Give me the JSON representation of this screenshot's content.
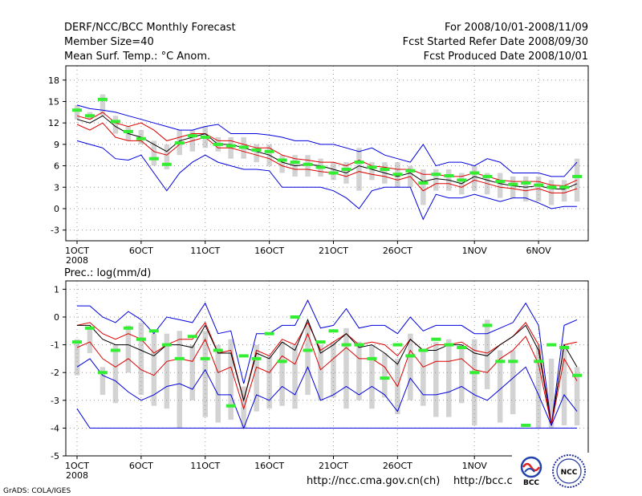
{
  "header": {
    "left_line1": "DERF/NCC/BCC Monthly Forecast",
    "left_line2": "Member Size=40",
    "left_line3": "Mean Surf. Temp.: °C Anom.",
    "right_line1": "For 2008/10/01-2008/11/09",
    "right_line2": "Fcst Started Refer Date 2008/09/30",
    "right_line3": "Fcst Produced Date 2008/10/01"
  },
  "footer": {
    "grads_credit": "GrADS: COLA/IGES",
    "url_cn": "http://ncc.cma.gov.cn(ch)",
    "url_bcc": "http://bcc.c",
    "logo_bcc_text": "BCC",
    "logo_ncc_text": "NCC"
  },
  "colors": {
    "envelope": "#0000dd",
    "spread": "#dd0000",
    "ensemble_mean": "#000000",
    "box": "#d3d3d3",
    "observed": "#33ee33"
  },
  "chart_data": [
    {
      "type": "line",
      "title": "Mean Surf. Temp.: °C Anom.",
      "xlabel": "",
      "ylabel": "°C Anom.",
      "x_tick_labels": [
        "1OCT",
        "6OCT",
        "11OCT",
        "16OCT",
        "21OCT",
        "26OCT",
        "1NOV",
        "6NOV"
      ],
      "x_tick_days": [
        1,
        6,
        11,
        16,
        21,
        26,
        32,
        37
      ],
      "x_sublabel": "2008",
      "xlim": [
        1,
        40
      ],
      "ylim": [
        -4.5,
        20
      ],
      "y_ticks": [
        -3,
        0,
        3,
        6,
        9,
        12,
        15,
        18
      ],
      "grid": true,
      "series": [
        {
          "name": "max",
          "role": "envelope",
          "values": [
            14.5,
            14.0,
            13.8,
            13.5,
            13.0,
            12.5,
            12.0,
            11.5,
            11.0,
            11.0,
            11.5,
            11.8,
            10.5,
            10.5,
            10.5,
            10.3,
            10.0,
            9.5,
            9.5,
            9.0,
            9.0,
            8.5,
            8.0,
            8.5,
            7.5,
            7.0,
            6.5,
            9.0,
            6.0,
            6.5,
            6.5,
            6.0,
            7.0,
            6.5,
            5.0,
            5.0,
            5.0,
            4.5,
            4.5,
            6.5
          ]
        },
        {
          "name": "p90",
          "role": "spread",
          "values": [
            13.0,
            12.5,
            13.5,
            12.0,
            11.5,
            12.0,
            11.0,
            9.5,
            10.0,
            10.5,
            10.5,
            9.5,
            9.5,
            9.0,
            8.5,
            8.5,
            7.5,
            7.0,
            6.8,
            6.5,
            6.5,
            6.0,
            6.8,
            6.0,
            5.8,
            5.5,
            5.5,
            4.8,
            4.8,
            4.5,
            4.5,
            5.0,
            4.5,
            4.0,
            3.8,
            3.8,
            3.8,
            3.3,
            3.2,
            4.0
          ]
        },
        {
          "name": "mean",
          "role": "ensemble_mean",
          "values": [
            12.5,
            12.0,
            13.0,
            11.5,
            10.5,
            10.0,
            9.0,
            8.0,
            9.5,
            10.0,
            10.5,
            9.0,
            9.0,
            8.5,
            8.0,
            7.5,
            6.5,
            6.0,
            6.2,
            6.0,
            5.5,
            5.0,
            6.0,
            5.5,
            5.0,
            4.5,
            5.0,
            3.8,
            4.2,
            4.0,
            3.5,
            4.5,
            4.0,
            3.5,
            3.2,
            3.0,
            3.2,
            2.8,
            2.7,
            3.5
          ]
        },
        {
          "name": "p10",
          "role": "spread",
          "values": [
            11.8,
            11.0,
            12.0,
            10.0,
            9.5,
            9.5,
            8.0,
            7.5,
            9.0,
            9.5,
            10.0,
            8.5,
            8.5,
            8.0,
            7.5,
            7.0,
            6.0,
            5.5,
            5.5,
            5.2,
            5.0,
            4.5,
            5.2,
            4.8,
            4.5,
            4.0,
            4.5,
            2.5,
            3.5,
            3.5,
            3.0,
            4.0,
            3.5,
            3.0,
            2.8,
            2.5,
            2.8,
            2.2,
            2.2,
            2.8
          ]
        },
        {
          "name": "min",
          "role": "envelope",
          "values": [
            9.5,
            9.0,
            8.5,
            7.0,
            6.8,
            7.5,
            5.0,
            2.5,
            5.0,
            6.5,
            7.5,
            6.5,
            6.0,
            5.5,
            5.5,
            5.3,
            3.0,
            3.0,
            3.0,
            3.0,
            2.5,
            1.5,
            0.0,
            2.5,
            3.0,
            3.0,
            3.0,
            -1.5,
            2.0,
            1.5,
            1.5,
            2.0,
            1.5,
            1.0,
            1.5,
            1.5,
            0.8,
            0.0,
            0.3,
            0.3
          ]
        },
        {
          "name": "observed",
          "role": "observed",
          "values": [
            13.8,
            13.0,
            15.3,
            12.2,
            10.8,
            9.8,
            7.0,
            6.2,
            9.2,
            10.2,
            10.0,
            9.0,
            8.8,
            8.6,
            8.2,
            8.0,
            6.8,
            6.5,
            6.2,
            5.8,
            5.0,
            5.5,
            6.5,
            5.8,
            5.5,
            4.8,
            5.3,
            3.6,
            4.8,
            4.6,
            4.0,
            5.0,
            4.5,
            3.8,
            3.4,
            3.6,
            3.3,
            3.0,
            3.0,
            4.5
          ]
        }
      ],
      "boxes": [
        [
          12.5,
          14.5
        ],
        [
          12.5,
          13.5
        ],
        [
          13.0,
          16.0
        ],
        [
          10.5,
          13.0
        ],
        [
          9.5,
          11.5
        ],
        [
          9.0,
          11.0
        ],
        [
          6.0,
          9.5
        ],
        [
          5.5,
          9.0
        ],
        [
          7.5,
          11.0
        ],
        [
          8.0,
          11.0
        ],
        [
          8.5,
          11.5
        ],
        [
          8.0,
          10.0
        ],
        [
          7.0,
          10.0
        ],
        [
          7.0,
          10.0
        ],
        [
          6.5,
          9.0
        ],
        [
          6.0,
          9.0
        ],
        [
          5.0,
          7.5
        ],
        [
          4.5,
          7.5
        ],
        [
          4.5,
          7.5
        ],
        [
          4.5,
          7.0
        ],
        [
          4.0,
          6.5
        ],
        [
          3.5,
          6.5
        ],
        [
          2.5,
          8.5
        ],
        [
          4.0,
          6.5
        ],
        [
          3.5,
          6.5
        ],
        [
          3.0,
          6.5
        ],
        [
          3.0,
          6.0
        ],
        [
          0.5,
          5.5
        ],
        [
          2.5,
          5.5
        ],
        [
          2.5,
          5.5
        ],
        [
          2.0,
          5.0
        ],
        [
          2.5,
          6.0
        ],
        [
          2.0,
          5.0
        ],
        [
          1.5,
          5.0
        ],
        [
          1.5,
          4.5
        ],
        [
          1.0,
          4.5
        ],
        [
          1.0,
          4.5
        ],
        [
          0.5,
          4.0
        ],
        [
          1.0,
          4.0
        ],
        [
          1.0,
          7.0
        ]
      ]
    },
    {
      "type": "line",
      "title": "Prec.: log(mm/d)",
      "xlabel": "",
      "ylabel": "log(mm/d)",
      "x_tick_labels": [
        "1OCT",
        "6OCT",
        "11OCT",
        "16OCT",
        "21OCT",
        "26OCT",
        "1NOV",
        "6NOV"
      ],
      "x_tick_days": [
        1,
        6,
        11,
        16,
        21,
        26,
        32,
        37
      ],
      "x_sublabel": "2008",
      "xlim": [
        1,
        40
      ],
      "ylim": [
        -5,
        1.3
      ],
      "y_ticks": [
        -5,
        -4,
        -3,
        -2,
        -1,
        0,
        1
      ],
      "grid": true,
      "series": [
        {
          "name": "max",
          "role": "envelope",
          "values": [
            0.4,
            0.4,
            0.0,
            -0.2,
            0.2,
            -0.1,
            -0.6,
            0.0,
            -0.1,
            -0.2,
            0.5,
            -0.6,
            -0.5,
            -2.4,
            -0.6,
            -0.6,
            -0.3,
            -0.3,
            0.6,
            -0.4,
            -0.3,
            0.3,
            -0.4,
            -0.3,
            -0.3,
            -0.6,
            0.0,
            -0.5,
            -0.3,
            -0.3,
            -0.3,
            -0.6,
            -0.6,
            -0.4,
            -0.2,
            0.5,
            -0.3,
            -3.9,
            -0.3,
            -0.1
          ]
        },
        {
          "name": "p90",
          "role": "spread",
          "values": [
            -0.3,
            -0.2,
            -0.6,
            -0.8,
            -0.6,
            -0.8,
            -1.3,
            -1.0,
            -0.8,
            -0.8,
            -0.2,
            -1.3,
            -1.2,
            -3.0,
            -1.2,
            -1.4,
            -0.8,
            -1.0,
            -0.2,
            -1.2,
            -0.9,
            -0.6,
            -1.0,
            -0.9,
            -1.0,
            -1.4,
            -0.8,
            -1.2,
            -1.0,
            -1.0,
            -0.9,
            -1.2,
            -1.3,
            -1.0,
            -0.7,
            -0.2,
            -1.0,
            -3.9,
            -1.0,
            -0.9
          ]
        },
        {
          "name": "mean",
          "role": "ensemble_mean",
          "values": [
            -0.3,
            -0.3,
            -0.8,
            -1.0,
            -1.0,
            -1.2,
            -1.4,
            -1.0,
            -1.0,
            -1.1,
            -0.3,
            -1.3,
            -1.3,
            -3.0,
            -1.3,
            -1.5,
            -0.9,
            -1.2,
            -0.1,
            -1.3,
            -1.0,
            -0.6,
            -1.1,
            -1.0,
            -1.3,
            -1.7,
            -0.8,
            -1.2,
            -1.2,
            -1.0,
            -1.0,
            -1.3,
            -1.4,
            -1.0,
            -0.7,
            -0.3,
            -1.2,
            -3.9,
            -1.0,
            -1.8
          ]
        },
        {
          "name": "p10",
          "role": "spread",
          "values": [
            -1.1,
            -0.9,
            -1.5,
            -1.8,
            -1.5,
            -1.9,
            -2.1,
            -1.6,
            -1.5,
            -1.6,
            -0.8,
            -2.0,
            -1.8,
            -3.3,
            -1.8,
            -2.0,
            -1.4,
            -1.7,
            -0.6,
            -1.9,
            -1.5,
            -1.1,
            -1.5,
            -1.5,
            -1.8,
            -2.5,
            -1.2,
            -1.8,
            -1.6,
            -1.6,
            -1.5,
            -1.9,
            -2.0,
            -1.5,
            -1.2,
            -0.7,
            -1.7,
            -3.9,
            -1.5,
            -2.3
          ]
        },
        {
          "name": "min",
          "role": "envelope",
          "values": [
            -1.8,
            -1.5,
            -2.1,
            -2.3,
            -2.7,
            -3.0,
            -2.8,
            -2.5,
            -2.4,
            -2.6,
            -1.9,
            -2.8,
            -2.8,
            -4.0,
            -2.8,
            -3.0,
            -2.5,
            -2.8,
            -1.8,
            -3.0,
            -2.8,
            -2.5,
            -2.8,
            -2.5,
            -2.8,
            -3.4,
            -2.2,
            -2.8,
            -2.8,
            -2.7,
            -2.5,
            -2.8,
            -3.0,
            -2.6,
            -2.2,
            -1.8,
            -2.8,
            -3.9,
            -2.8,
            -3.4
          ]
        },
        {
          "name": "lower_bound",
          "role": "envelope",
          "values": [
            -3.3,
            -4.0,
            -4.0,
            -4.0,
            -4.0,
            -4.0,
            -4.0,
            -4.0,
            -4.0,
            -4.0,
            -4.0,
            -4.0,
            -4.0,
            -4.0,
            -4.0,
            -4.0,
            -4.0,
            -4.0,
            -4.0,
            -4.0,
            -4.0,
            -4.0,
            -4.0,
            -4.0,
            -4.0,
            -4.0,
            -4.0,
            -4.0,
            -4.0,
            -4.0,
            -4.0,
            -4.0,
            -4.0,
            -4.0,
            -4.0,
            -4.0,
            -4.0,
            -4.0,
            -4.0,
            -4.0
          ]
        },
        {
          "name": "observed",
          "role": "observed",
          "values": [
            -0.9,
            -0.4,
            -2.0,
            -1.2,
            -0.4,
            -0.8,
            -0.5,
            -1.0,
            -1.5,
            -0.7,
            -1.5,
            -1.2,
            -3.2,
            -1.4,
            -1.5,
            -0.6,
            -1.6,
            0.0,
            -1.2,
            -0.9,
            -0.5,
            -1.0,
            -1.0,
            -1.5,
            -2.2,
            -1.0,
            -1.4,
            -1.2,
            -0.8,
            -1.0,
            -1.1,
            -2.0,
            -0.3,
            -1.6,
            -1.6,
            -3.9,
            -1.6,
            -1.0,
            -1.1,
            -2.1
          ]
        },
        {
          "name": "observed_day",
          "role": "observed_x",
          "values": [
            1,
            2,
            3,
            4,
            5,
            6,
            7,
            8,
            9,
            10,
            11,
            12,
            13,
            14,
            15,
            16,
            17,
            18,
            19,
            20,
            21,
            22,
            23,
            24,
            25,
            26,
            27,
            28,
            29,
            30,
            31,
            32,
            33,
            34,
            35,
            36,
            37,
            38,
            39,
            40
          ]
        }
      ],
      "boxes": [
        [
          -2.1,
          -0.8
        ],
        [
          -1.3,
          -0.4
        ],
        [
          -2.8,
          -1.8
        ],
        [
          -3.1,
          -1.0
        ],
        [
          -2.0,
          -0.3
        ],
        [
          -2.8,
          -0.2
        ],
        [
          -3.2,
          -0.6
        ],
        [
          -3.3,
          -0.6
        ],
        [
          -4.0,
          -0.5
        ],
        [
          -3.0,
          -1.0
        ],
        [
          -3.6,
          -0.5
        ],
        [
          -3.8,
          -1.0
        ],
        [
          -3.7,
          -0.8
        ],
        [
          -4.0,
          -2.5
        ],
        [
          -3.4,
          -1.0
        ],
        [
          -3.3,
          -1.4
        ],
        [
          -3.2,
          -0.9
        ],
        [
          -3.3,
          -1.0
        ],
        [
          -2.8,
          -0.3
        ],
        [
          -3.0,
          -1.0
        ],
        [
          -2.9,
          -0.9
        ],
        [
          -3.3,
          -0.4
        ],
        [
          -3.0,
          -0.9
        ],
        [
          -3.3,
          -1.0
        ],
        [
          -2.9,
          -1.3
        ],
        [
          -3.5,
          -1.5
        ],
        [
          -3.0,
          -0.6
        ],
        [
          -3.2,
          -1.2
        ],
        [
          -3.6,
          -0.9
        ],
        [
          -3.6,
          -0.8
        ],
        [
          -3.1,
          -1.0
        ],
        [
          -3.9,
          -0.8
        ],
        [
          -2.6,
          -0.1
        ],
        [
          -3.8,
          -1.2
        ],
        [
          -3.5,
          -1.2
        ],
        [
          -3.9,
          -3.9
        ],
        [
          -4.0,
          -1.0
        ],
        [
          -4.0,
          -1.5
        ],
        [
          -3.9,
          -1.0
        ],
        [
          -3.9,
          -1.8
        ]
      ]
    }
  ]
}
